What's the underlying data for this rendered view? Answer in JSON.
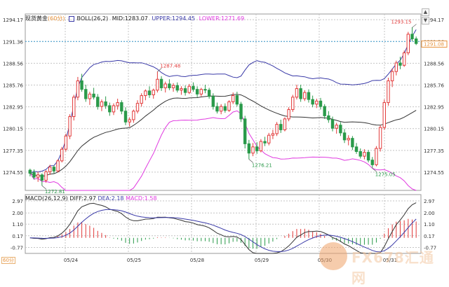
{
  "header": {
    "symbol": "现货黄金",
    "period": "(60分)",
    "indicator": "BOLL(26,2)",
    "mid": "MID:1283.07",
    "upper": "UPPER:1294.45",
    "lower": "LOWER:1271.69"
  },
  "macd_header": {
    "name": "MACD(26,12,9)",
    "diff": "DIFF:2.97",
    "dea": "DEA:2.18",
    "macd": "MACD:1.58"
  },
  "period_tag": "60分",
  "controls": {
    "up": "▲",
    "down": "▼"
  },
  "colors": {
    "up": "#e23a3a",
    "down": "#2a9a4a",
    "mid": "#333333",
    "upper": "#3a3aa8",
    "lower": "#e03ae0",
    "diff": "#333333",
    "dea": "#3a3aa8",
    "current": "#e8923a",
    "grid": "#c4c4c4"
  },
  "chart_data": [
    {
      "type": "candlestick",
      "title": "现货黄金 (60分)",
      "x_ticks": [
        "05/24",
        "05/25",
        "05/28",
        "05/29",
        "05/30",
        "05/31"
      ],
      "y_ticks": [
        1294.17,
        1291.36,
        1288.56,
        1285.76,
        1282.95,
        1280.15,
        1277.35,
        1274.55
      ],
      "ylim": [
        1272.2,
        1294.9
      ],
      "current_price": 1291.08,
      "reference_line": 1291.36,
      "annotations": [
        {
          "label": "1272.81",
          "value": 1272.81,
          "type": "low"
        },
        {
          "label": "1287.48",
          "value": 1287.48,
          "type": "high"
        },
        {
          "label": "1276.21",
          "value": 1276.21,
          "type": "low"
        },
        {
          "label": "1275.05",
          "value": 1275.05,
          "type": "low"
        },
        {
          "label": "1293.15",
          "value": 1293.15,
          "type": "high"
        }
      ],
      "candles": [
        [
          1274.8,
          1275.0,
          1274.0,
          1274.4
        ],
        [
          1274.5,
          1274.9,
          1273.6,
          1273.9
        ],
        [
          1273.9,
          1274.6,
          1273.3,
          1274.2
        ],
        [
          1274.2,
          1274.4,
          1272.8,
          1273.5
        ],
        [
          1273.5,
          1274.8,
          1273.2,
          1274.6
        ],
        [
          1274.6,
          1275.5,
          1274.2,
          1275.2
        ],
        [
          1275.2,
          1275.4,
          1274.4,
          1274.7
        ],
        [
          1274.7,
          1276.2,
          1274.5,
          1276.0
        ],
        [
          1276.0,
          1277.8,
          1275.8,
          1277.5
        ],
        [
          1277.5,
          1279.5,
          1277.2,
          1279.2
        ],
        [
          1279.2,
          1282.0,
          1278.8,
          1281.7
        ],
        [
          1281.7,
          1284.5,
          1281.2,
          1284.2
        ],
        [
          1284.2,
          1286.8,
          1283.8,
          1286.3
        ],
        [
          1286.3,
          1287.2,
          1284.9,
          1285.2
        ],
        [
          1285.2,
          1285.8,
          1283.6,
          1284.0
        ],
        [
          1284.0,
          1284.9,
          1283.2,
          1284.6
        ],
        [
          1284.6,
          1285.4,
          1283.9,
          1284.2
        ],
        [
          1284.2,
          1284.6,
          1282.6,
          1283.0
        ],
        [
          1283.0,
          1283.9,
          1282.4,
          1283.6
        ],
        [
          1283.6,
          1284.3,
          1282.7,
          1283.1
        ],
        [
          1283.1,
          1283.5,
          1281.8,
          1282.3
        ],
        [
          1282.3,
          1283.4,
          1281.9,
          1283.1
        ],
        [
          1283.1,
          1284.0,
          1282.6,
          1283.5
        ],
        [
          1283.5,
          1283.8,
          1282.0,
          1282.4
        ],
        [
          1282.4,
          1282.9,
          1280.6,
          1281.0
        ],
        [
          1281.0,
          1281.6,
          1280.4,
          1281.3
        ],
        [
          1281.3,
          1282.6,
          1280.9,
          1282.4
        ],
        [
          1282.4,
          1283.8,
          1282.1,
          1283.4
        ],
        [
          1283.4,
          1284.7,
          1283.0,
          1284.4
        ],
        [
          1284.4,
          1285.2,
          1283.8,
          1285.0
        ],
        [
          1285.0,
          1285.6,
          1284.1,
          1284.5
        ],
        [
          1284.5,
          1285.3,
          1284.0,
          1285.1
        ],
        [
          1285.1,
          1287.5,
          1284.8,
          1286.5
        ],
        [
          1286.5,
          1286.9,
          1285.0,
          1285.4
        ],
        [
          1285.4,
          1286.2,
          1284.8,
          1285.9
        ],
        [
          1285.9,
          1286.5,
          1285.1,
          1285.4
        ],
        [
          1285.4,
          1286.0,
          1284.9,
          1285.7
        ],
        [
          1285.7,
          1286.1,
          1284.8,
          1285.1
        ],
        [
          1285.1,
          1285.6,
          1284.5,
          1285.3
        ],
        [
          1285.3,
          1285.7,
          1284.4,
          1284.8
        ],
        [
          1284.8,
          1285.9,
          1284.6,
          1285.6
        ],
        [
          1285.6,
          1286.1,
          1284.9,
          1285.2
        ],
        [
          1285.2,
          1285.6,
          1284.2,
          1284.6
        ],
        [
          1284.6,
          1285.4,
          1284.3,
          1285.2
        ],
        [
          1285.2,
          1285.8,
          1284.7,
          1285.1
        ],
        [
          1285.1,
          1285.4,
          1284.0,
          1284.3
        ],
        [
          1284.3,
          1284.7,
          1282.6,
          1283.0
        ],
        [
          1283.0,
          1283.5,
          1282.1,
          1282.4
        ],
        [
          1282.4,
          1283.3,
          1282.0,
          1283.0
        ],
        [
          1283.0,
          1283.4,
          1282.2,
          1282.5
        ],
        [
          1282.5,
          1283.8,
          1282.3,
          1283.6
        ],
        [
          1283.6,
          1284.8,
          1283.3,
          1284.4
        ],
        [
          1284.4,
          1284.9,
          1283.0,
          1283.3
        ],
        [
          1283.3,
          1283.6,
          1281.0,
          1281.4
        ],
        [
          1281.4,
          1281.8,
          1277.6,
          1278.2
        ],
        [
          1278.2,
          1278.7,
          1276.2,
          1277.0
        ],
        [
          1277.0,
          1278.3,
          1276.6,
          1277.8
        ],
        [
          1277.8,
          1278.4,
          1276.9,
          1277.3
        ],
        [
          1277.3,
          1278.8,
          1277.1,
          1278.5
        ],
        [
          1278.5,
          1279.1,
          1277.9,
          1278.3
        ],
        [
          1278.3,
          1279.6,
          1278.0,
          1279.3
        ],
        [
          1279.3,
          1280.0,
          1278.8,
          1279.5
        ],
        [
          1279.5,
          1281.0,
          1279.2,
          1280.7
        ],
        [
          1280.7,
          1281.3,
          1279.6,
          1280.0
        ],
        [
          1280.0,
          1281.6,
          1279.8,
          1281.4
        ],
        [
          1281.4,
          1282.9,
          1281.1,
          1282.6
        ],
        [
          1282.6,
          1284.5,
          1282.3,
          1284.2
        ],
        [
          1284.2,
          1285.8,
          1283.9,
          1285.3
        ],
        [
          1285.3,
          1285.8,
          1283.6,
          1284.0
        ],
        [
          1284.0,
          1285.1,
          1283.7,
          1284.8
        ],
        [
          1284.8,
          1285.2,
          1283.5,
          1283.9
        ],
        [
          1283.9,
          1284.4,
          1282.9,
          1283.3
        ],
        [
          1283.3,
          1284.0,
          1282.8,
          1283.7
        ],
        [
          1283.7,
          1284.1,
          1282.6,
          1283.0
        ],
        [
          1283.0,
          1283.3,
          1281.4,
          1281.8
        ],
        [
          1281.8,
          1282.4,
          1280.9,
          1281.3
        ],
        [
          1281.3,
          1281.7,
          1279.8,
          1280.2
        ],
        [
          1280.2,
          1280.9,
          1279.5,
          1280.6
        ],
        [
          1280.6,
          1281.0,
          1279.2,
          1279.6
        ],
        [
          1279.6,
          1280.1,
          1278.3,
          1278.7
        ],
        [
          1278.7,
          1279.3,
          1278.0,
          1278.9
        ],
        [
          1278.9,
          1279.2,
          1277.4,
          1277.8
        ],
        [
          1277.8,
          1278.3,
          1276.9,
          1277.2
        ],
        [
          1277.2,
          1277.6,
          1276.3,
          1276.6
        ],
        [
          1276.6,
          1277.5,
          1276.2,
          1277.1
        ],
        [
          1277.1,
          1277.4,
          1275.8,
          1276.1
        ],
        [
          1276.1,
          1276.5,
          1275.1,
          1275.5
        ],
        [
          1275.5,
          1277.9,
          1275.3,
          1277.6
        ],
        [
          1277.6,
          1280.6,
          1277.2,
          1280.3
        ],
        [
          1280.3,
          1283.9,
          1280.0,
          1283.5
        ],
        [
          1283.5,
          1286.7,
          1283.1,
          1286.3
        ],
        [
          1286.3,
          1287.9,
          1285.5,
          1287.5
        ],
        [
          1287.5,
          1288.9,
          1287.0,
          1288.6
        ],
        [
          1288.6,
          1289.4,
          1287.8,
          1288.3
        ],
        [
          1288.3,
          1290.2,
          1288.1,
          1289.9
        ],
        [
          1289.9,
          1292.6,
          1289.6,
          1292.3
        ],
        [
          1292.3,
          1293.2,
          1291.4,
          1291.7
        ],
        [
          1291.7,
          1292.0,
          1290.9,
          1291.1
        ]
      ]
    },
    {
      "type": "line",
      "title": "MACD(26,12,9)",
      "series": [
        {
          "name": "DIFF"
        },
        {
          "name": "DEA"
        },
        {
          "name": "MACD"
        }
      ],
      "y_ticks": [
        2.97,
        2.0,
        1.1,
        0.17,
        -0.77
      ],
      "ylim": [
        -1.25,
        3.25
      ]
    }
  ]
}
